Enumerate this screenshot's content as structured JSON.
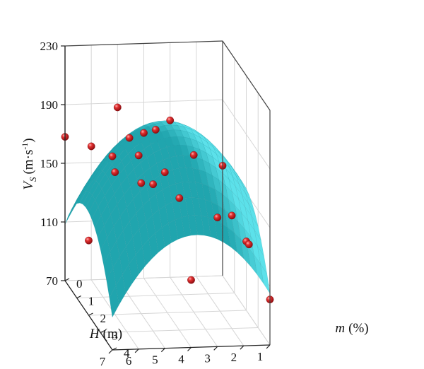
{
  "chart_data": {
    "type": "scatter",
    "subtype": "3d-surface-with-points",
    "title": "",
    "axes": {
      "x": {
        "label": "H",
        "unit": "(m)",
        "ticks": [
          "1",
          "2",
          "3",
          "4",
          "5",
          "6",
          "7"
        ],
        "range": [
          1,
          7
        ]
      },
      "y": {
        "label": "m",
        "unit": "(%)",
        "ticks": [
          "0",
          "1",
          "2",
          "3",
          "4"
        ],
        "range": [
          0,
          4
        ]
      },
      "z": {
        "label": "V",
        "subscript": "S",
        "unit": "(m·s",
        "unit_exp": "-1",
        "unit_close": ")",
        "ticks": [
          "70",
          "110",
          "150",
          "190",
          "230"
        ],
        "range": [
          70,
          230
        ]
      }
    },
    "grid": true,
    "colors": {
      "surface": "#3ec3cc",
      "surface_edge": "#1f8f98",
      "points": "#c8141a",
      "points_highlight": "#ff9a9a"
    },
    "points": [
      {
        "H": 1,
        "m": 4,
        "Vs": 101
      },
      {
        "H": 1,
        "m": 2,
        "Vs": 117
      },
      {
        "H": 1,
        "m": 0,
        "Vs": 145
      },
      {
        "H": 1.8,
        "m": 4,
        "Vs": 139
      },
      {
        "H": 2,
        "m": 3,
        "Vs": 147
      },
      {
        "H": 3,
        "m": 4,
        "Vs": 158
      },
      {
        "H": 3,
        "m": 2,
        "Vs": 177
      },
      {
        "H": 3,
        "m": 0,
        "Vs": 177
      },
      {
        "H": 4,
        "m": 4,
        "Vs": 116
      },
      {
        "H": 4,
        "m": 3,
        "Vs": 160
      },
      {
        "H": 4,
        "m": 1,
        "Vs": 183
      },
      {
        "H": 4,
        "m": 0,
        "Vs": 169
      },
      {
        "H": 5,
        "m": 4,
        "Vs": 190
      },
      {
        "H": 5,
        "m": 3,
        "Vs": 170
      },
      {
        "H": 5,
        "m": 2,
        "Vs": 159
      },
      {
        "H": 5,
        "m": 1,
        "Vs": 178
      },
      {
        "H": 5,
        "m": 0,
        "Vs": 187
      },
      {
        "H": 6,
        "m": 4,
        "Vs": 202
      },
      {
        "H": 6,
        "m": 2,
        "Vs": 167
      },
      {
        "H": 6,
        "m": 0,
        "Vs": 161
      },
      {
        "H": 7,
        "m": 4,
        "Vs": 202
      },
      {
        "H": 7,
        "m": 2,
        "Vs": 121
      },
      {
        "H": 7,
        "m": 0,
        "Vs": 168
      }
    ],
    "surface_model": {
      "Vs0": 195,
      "H0": 3.8,
      "m0": 1.8,
      "aH": 5.3,
      "am": 10.0,
      "grid_H": [
        1,
        7
      ],
      "grid_m": [
        0,
        4
      ]
    }
  }
}
